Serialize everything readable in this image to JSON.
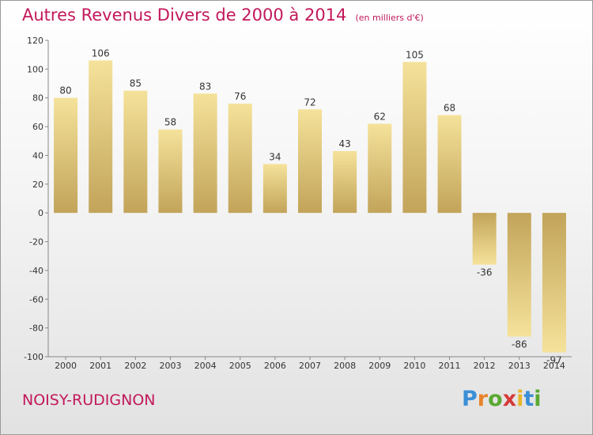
{
  "header": {
    "title": "Autres Revenus Divers de 2000 à 2014",
    "subtitle": "(en milliers d'€)"
  },
  "footer": {
    "place": "NOISY-RUDIGNON",
    "logo_letters": [
      "P",
      "r",
      "o",
      "x",
      "i",
      "t",
      "i"
    ],
    "logo_colors": [
      "#3b8fd6",
      "#e8832a",
      "#5aa832",
      "#d63a3a",
      "#e8b62a",
      "#3b8fd6",
      "#5aa832"
    ]
  },
  "colors": {
    "accent": "#c2185b",
    "bar_light": "#f5e29a",
    "bar_dark": "#c2a45a"
  },
  "chart_data": {
    "type": "bar",
    "title": "Autres Revenus Divers de 2000 à 2014",
    "subtitle": "(en milliers d'€)",
    "categories": [
      "2000",
      "2001",
      "2002",
      "2003",
      "2004",
      "2005",
      "2006",
      "2007",
      "2008",
      "2009",
      "2010",
      "2011",
      "2012",
      "2013",
      "2014"
    ],
    "values": [
      80,
      106,
      85,
      58,
      83,
      76,
      34,
      72,
      43,
      62,
      105,
      68,
      -36,
      -86,
      -97
    ],
    "ylim": [
      -100,
      120
    ],
    "yticks": [
      -100,
      -80,
      -60,
      -40,
      -20,
      0,
      20,
      40,
      60,
      80,
      100,
      120
    ],
    "grid": false,
    "legend": "none"
  }
}
